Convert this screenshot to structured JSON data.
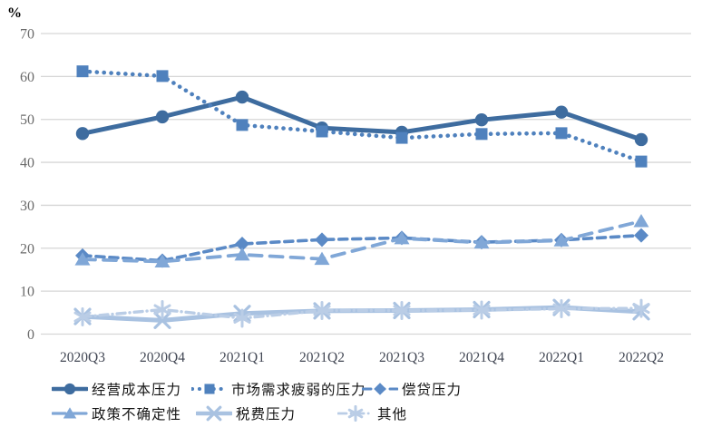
{
  "chart_data": {
    "type": "line",
    "title": "",
    "unit_label": "%",
    "xlabel": "",
    "ylabel": "%",
    "ylim": [
      0,
      70
    ],
    "yticks": [
      0,
      10,
      20,
      30,
      40,
      50,
      60,
      70
    ],
    "grid": "horizontal-only",
    "legend_position": "bottom",
    "gridline_color": "#d6d6d6",
    "categories": [
      "2020Q3",
      "2020Q4",
      "2021Q1",
      "2021Q2",
      "2021Q3",
      "2021Q4",
      "2022Q1",
      "2022Q2"
    ],
    "series": [
      {
        "name": "经营成本压力",
        "marker": "circle",
        "line_style": "solid",
        "color": "#3e6c9f",
        "values": [
          46.7,
          50.6,
          55.2,
          48.0,
          47.0,
          49.9,
          51.7,
          45.3
        ]
      },
      {
        "name": "市场需求疲弱的压力",
        "marker": "square",
        "line_style": "dotted",
        "color": "#4f81bd",
        "values": [
          61.2,
          60.1,
          48.7,
          47.2,
          45.7,
          46.6,
          46.8,
          40.2
        ]
      },
      {
        "name": "偿贷压力",
        "marker": "diamond",
        "line_style": "dashed",
        "color": "#5b8ac6",
        "values": [
          18.3,
          17.1,
          21.0,
          22.0,
          22.4,
          21.4,
          21.9,
          23.0
        ]
      },
      {
        "name": "政策不确定性",
        "marker": "triangle",
        "line_style": "long-dash",
        "color": "#80a7d7",
        "values": [
          17.4,
          16.9,
          18.5,
          17.5,
          22.3,
          21.3,
          21.8,
          26.3
        ]
      },
      {
        "name": "税费压力",
        "marker": "x-cross",
        "line_style": "solid",
        "color": "#a9c2e1",
        "values": [
          4.1,
          3.2,
          4.8,
          5.4,
          5.5,
          5.7,
          6.2,
          5.2
        ]
      },
      {
        "name": "其他",
        "marker": "asterisk",
        "line_style": "dash-dot",
        "color": "#bacde6",
        "values": [
          4.0,
          5.7,
          3.7,
          5.5,
          5.5,
          5.6,
          5.9,
          6.0
        ]
      }
    ]
  }
}
